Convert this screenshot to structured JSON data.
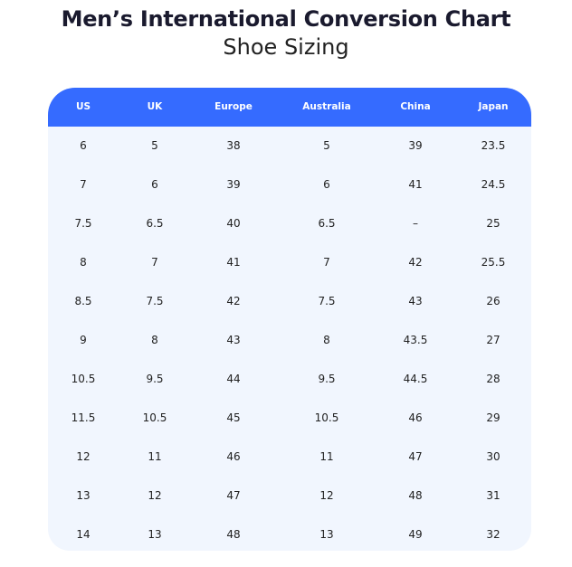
{
  "title": "Men’s International Conversion Chart",
  "subtitle": "Shoe Sizing",
  "colors": {
    "header": "#356bff",
    "body": "#f1f6fe"
  },
  "headers": [
    "US",
    "UK",
    "Europe",
    "Australia",
    "China",
    "Japan"
  ],
  "rows": [
    [
      "6",
      "5",
      "38",
      "5",
      "39",
      "23.5"
    ],
    [
      "7",
      "6",
      "39",
      "6",
      "41",
      "24.5"
    ],
    [
      "7.5",
      "6.5",
      "40",
      "6.5",
      "–",
      "25"
    ],
    [
      "8",
      "7",
      "41",
      "7",
      "42",
      "25.5"
    ],
    [
      "8.5",
      "7.5",
      "42",
      "7.5",
      "43",
      "26"
    ],
    [
      "9",
      "8",
      "43",
      "8",
      "43.5",
      "27"
    ],
    [
      "10.5",
      "9.5",
      "44",
      "9.5",
      "44.5",
      "28"
    ],
    [
      "11.5",
      "10.5",
      "45",
      "10.5",
      "46",
      "29"
    ],
    [
      "12",
      "11",
      "46",
      "11",
      "47",
      "30"
    ],
    [
      "13",
      "12",
      "47",
      "12",
      "48",
      "31"
    ],
    [
      "14",
      "13",
      "48",
      "13",
      "49",
      "32"
    ]
  ]
}
